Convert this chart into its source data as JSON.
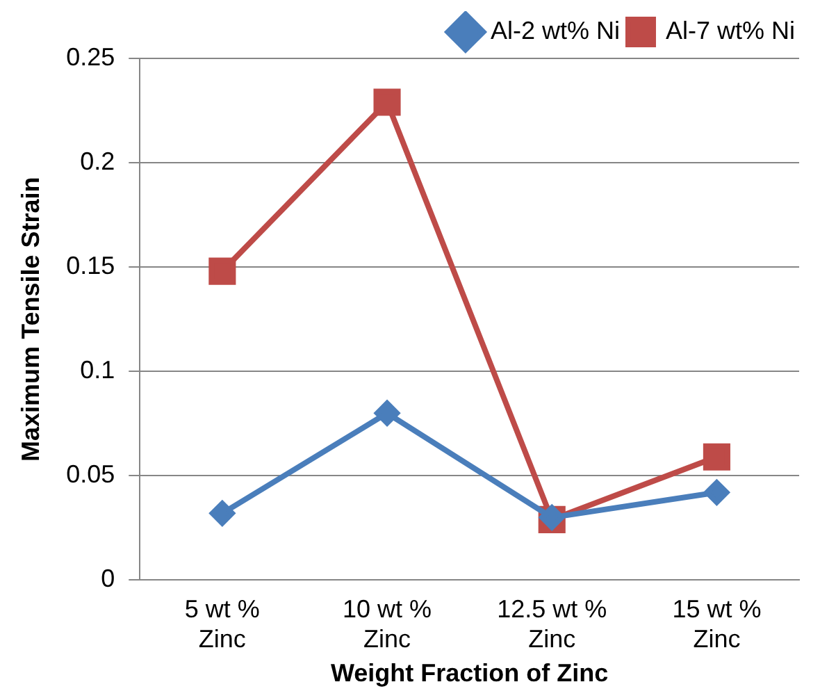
{
  "chart_data": {
    "type": "line",
    "xlabel": "Weight Fraction of Zinc",
    "ylabel": "Maximum Tensile Strain",
    "categories": [
      "5 wt % Zinc",
      "10 wt % Zinc",
      "12.5 wt % Zinc",
      "15 wt % Zinc"
    ],
    "series": [
      {
        "name": "Al-2 wt% Ni",
        "color": "#4a7ebb",
        "marker": "diamond",
        "values": [
          0.032,
          0.08,
          0.03,
          0.042
        ]
      },
      {
        "name": "Al-7 wt% Ni",
        "color": "#be4b48",
        "marker": "square",
        "values": [
          0.148,
          0.229,
          0.029,
          0.059
        ]
      }
    ],
    "ylim": [
      0,
      0.25
    ],
    "yticks": [
      0,
      0.05,
      0.1,
      0.15,
      0.2,
      0.25
    ],
    "grid": "y",
    "legend": "top right",
    "line_style": "solid"
  }
}
